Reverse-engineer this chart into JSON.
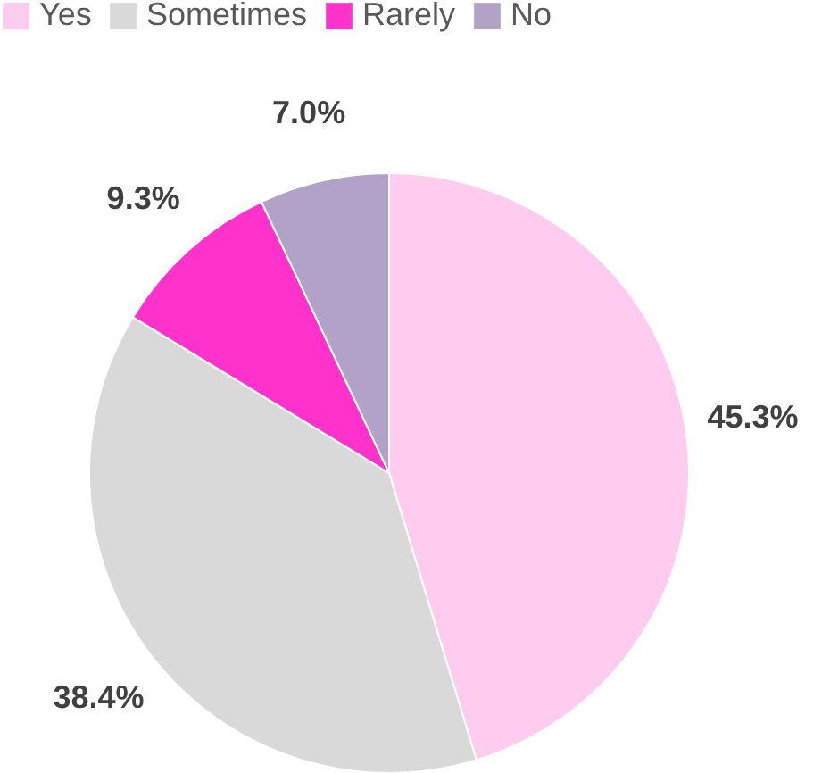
{
  "chart_data": {
    "type": "pie",
    "categories": [
      "Yes",
      "Sometimes",
      "Rarely",
      "No"
    ],
    "values": [
      45.3,
      38.4,
      9.3,
      7.0
    ],
    "colors": [
      "#ffccf0",
      "#d9d9d9",
      "#ff33cc",
      "#b3a2c7"
    ],
    "value_labels": [
      "45.3%",
      "38.4%",
      "9.3%",
      "7.0%"
    ],
    "legend": "top left"
  }
}
